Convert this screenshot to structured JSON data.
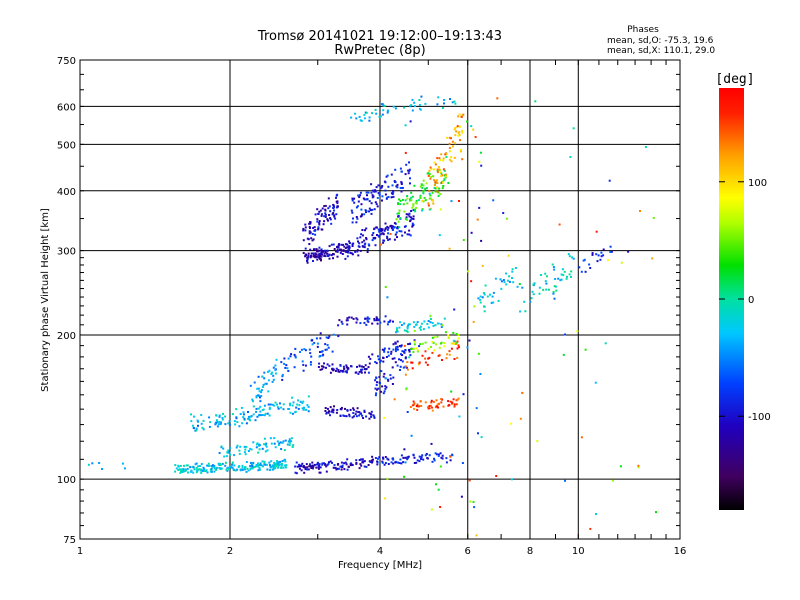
{
  "chart_data": {
    "type": "scatter",
    "title": "Tromsø 20141021 19:12:00–19:13:43",
    "subtitle": "RwPretec (8p)",
    "xlabel": "Frequency [MHz]",
    "ylabel": "Stationary phase Virtual Height [km]",
    "x_scale": "log",
    "y_scale": "log",
    "xlim": [
      1,
      16
    ],
    "ylim": [
      75,
      750
    ],
    "x_ticks": [
      1,
      2,
      4,
      6,
      8,
      10,
      16
    ],
    "y_ticks": [
      75,
      100,
      200,
      300,
      400,
      500,
      600,
      750
    ],
    "x_tick_labels": [
      "1",
      "2",
      "4",
      "6",
      "8",
      "10",
      "16"
    ],
    "y_tick_labels": [
      "75",
      "100",
      "200",
      "300",
      "400",
      "500",
      "600",
      "750"
    ],
    "grid": true,
    "stats": {
      "heading": "Phases",
      "line_o": "mean, sd,O: -75.3, 19.6",
      "line_x": "mean, sd,X: 110.1, 29.0"
    },
    "colorbar": {
      "label": "[deg]",
      "range": [
        -180,
        180
      ],
      "ticks": [
        100,
        0,
        -100
      ],
      "tick_labels": [
        "100",
        "0",
        "-100"
      ]
    },
    "traces": [
      {
        "f": [
          1.04,
          1.25
        ],
        "h": [
          106,
          106
        ],
        "phase": -20,
        "n": 6
      },
      {
        "f": [
          1.55,
          2.6
        ],
        "h": [
          104,
          108
        ],
        "phase": -25,
        "n": 200
      },
      {
        "f": [
          1.65,
          2.9
        ],
        "h": [
          126,
          148
        ],
        "phase": -35,
        "n": 130
      },
      {
        "f": [
          1.9,
          2.7
        ],
        "h": [
          112,
          122
        ],
        "phase": -30,
        "n": 70
      },
      {
        "f": [
          2.7,
          3.9
        ],
        "h": [
          104,
          110
        ],
        "phase": -110,
        "n": 110
      },
      {
        "f": [
          3.9,
          5.6
        ],
        "h": [
          108,
          112
        ],
        "phase": -90,
        "n": 70
      },
      {
        "f": [
          2.2,
          2.5
        ],
        "h": [
          140,
          180
        ],
        "phase": -40,
        "n": 40
      },
      {
        "f": [
          2.5,
          3.3
        ],
        "h": [
          158,
          210
        ],
        "phase": -70,
        "n": 60
      },
      {
        "f": [
          3.1,
          3.9
        ],
        "h": [
          140,
          135
        ],
        "phase": -110,
        "n": 60
      },
      {
        "f": [
          3.9,
          4.6
        ],
        "h": [
          145,
          190
        ],
        "phase": -100,
        "n": 50
      },
      {
        "f": [
          3.0,
          3.8
        ],
        "h": [
          172,
          168
        ],
        "phase": -110,
        "n": 60
      },
      {
        "f": [
          3.8,
          4.8
        ],
        "h": [
          170,
          200
        ],
        "phase": -95,
        "n": 50
      },
      {
        "f": [
          3.3,
          4.3
        ],
        "h": [
          212,
          215
        ],
        "phase": -100,
        "n": 40
      },
      {
        "f": [
          4.3,
          5.4
        ],
        "h": [
          205,
          215
        ],
        "phase": -20,
        "n": 40
      },
      {
        "f": [
          4.6,
          5.8
        ],
        "h": [
          141,
          146
        ],
        "phase": 155,
        "n": 50
      },
      {
        "f": [
          4.5,
          5.8
        ],
        "h": [
          165,
          195
        ],
        "phase": 150,
        "n": 35
      },
      {
        "f": [
          4.6,
          5.8
        ],
        "h": [
          180,
          205
        ],
        "phase": 60,
        "n": 35
      },
      {
        "f": [
          2.8,
          3.5
        ],
        "h": [
          285,
          310
        ],
        "phase": -115,
        "n": 120
      },
      {
        "f": [
          2.8,
          3.3
        ],
        "h": [
          300,
          400
        ],
        "phase": -105,
        "n": 90
      },
      {
        "f": [
          3.4,
          4.7
        ],
        "h": [
          290,
          360
        ],
        "phase": -100,
        "n": 130
      },
      {
        "f": [
          3.5,
          4.6
        ],
        "h": [
          340,
          460
        ],
        "phase": -90,
        "n": 110
      },
      {
        "f": [
          4.3,
          5.5
        ],
        "h": [
          330,
          470
        ],
        "phase": 30,
        "n": 90
      },
      {
        "f": [
          5.0,
          5.9
        ],
        "h": [
          360,
          600
        ],
        "phase": 120,
        "n": 80
      },
      {
        "f": [
          3.5,
          5.8
        ],
        "h": [
          560,
          640
        ],
        "phase": -30,
        "n": 50
      },
      {
        "f": [
          6.3,
          7.6
        ],
        "h": [
          220,
          285
        ],
        "phase": -30,
        "n": 35
      },
      {
        "f": [
          7.6,
          9.8
        ],
        "h": [
          220,
          300
        ],
        "phase": -20,
        "n": 45
      },
      {
        "f": [
          10.0,
          11.8
        ],
        "h": [
          270,
          310
        ],
        "phase": -90,
        "n": 20
      },
      {
        "f": [
          4.0,
          6.5
        ],
        "h": [
          76,
          560
        ],
        "phase": 0,
        "n": 80
      },
      {
        "f": [
          6.0,
          14.5
        ],
        "h": [
          78,
          660
        ],
        "phase": 0,
        "n": 45
      }
    ]
  }
}
